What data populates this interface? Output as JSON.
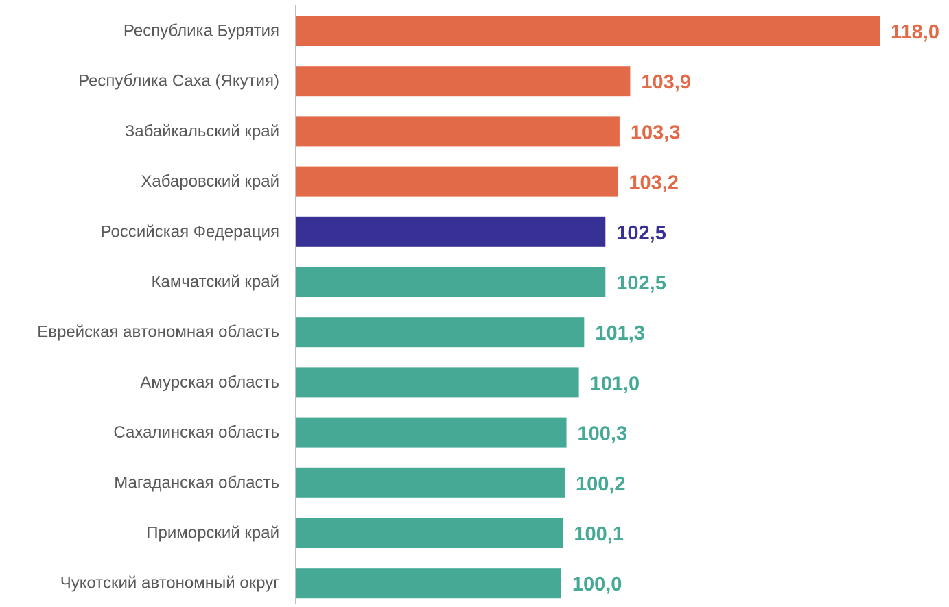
{
  "chart_data": {
    "type": "bar",
    "orientation": "horizontal",
    "categories": [
      "Республика Бурятия",
      "Республика Саха (Якутия)",
      "Забайкальский край",
      "Хабаровский край",
      "Российская Федерация",
      "Камчатский край",
      "Еврейская автономная область",
      "Амурская область",
      "Сахалинская область",
      "Магаданская область",
      "Приморский край",
      "Чукотский автономный округ"
    ],
    "values": [
      118.0,
      103.9,
      103.3,
      103.2,
      102.5,
      102.5,
      101.3,
      101.0,
      100.3,
      100.2,
      100.1,
      100.0
    ],
    "value_labels": [
      "118,0",
      "103,9",
      "103,3",
      "103,2",
      "102,5",
      "102,5",
      "101,3",
      "101,0",
      "100,3",
      "100,2",
      "100,1",
      "100,0"
    ],
    "bar_colors": [
      "#E36A48",
      "#E36A48",
      "#E36A48",
      "#E36A48",
      "#373196",
      "#45A996",
      "#45A996",
      "#45A996",
      "#45A996",
      "#45A996",
      "#45A996",
      "#45A996"
    ],
    "axis_color": "#BFBFBF",
    "category_label_color": "#595959",
    "xlim": [
      85.0,
      118.0
    ],
    "grid": false,
    "legend": "none",
    "title": "",
    "xlabel": "",
    "ylabel": ""
  }
}
